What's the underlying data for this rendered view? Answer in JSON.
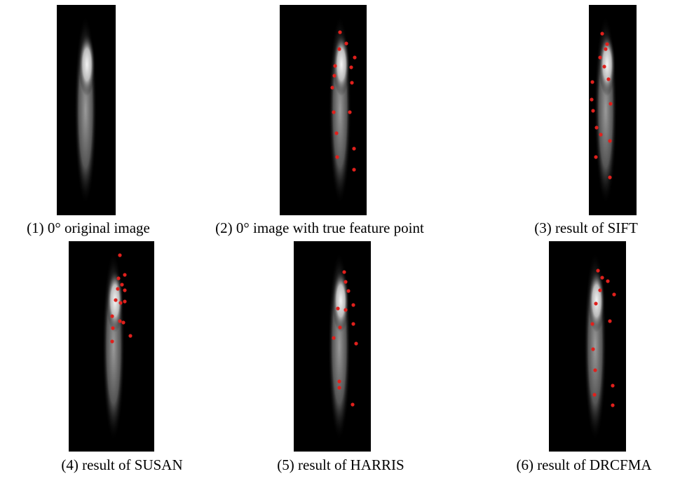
{
  "figure": {
    "panels": [
      {
        "caption": "(1) 0° original image"
      },
      {
        "caption": "(2) 0° image with true feature point"
      },
      {
        "caption": "(3) result of SIFT"
      },
      {
        "caption": "(4) result of SUSAN"
      },
      {
        "caption": "(5) result of HARRIS"
      },
      {
        "caption": "(6) result of DRCFMA"
      }
    ]
  }
}
